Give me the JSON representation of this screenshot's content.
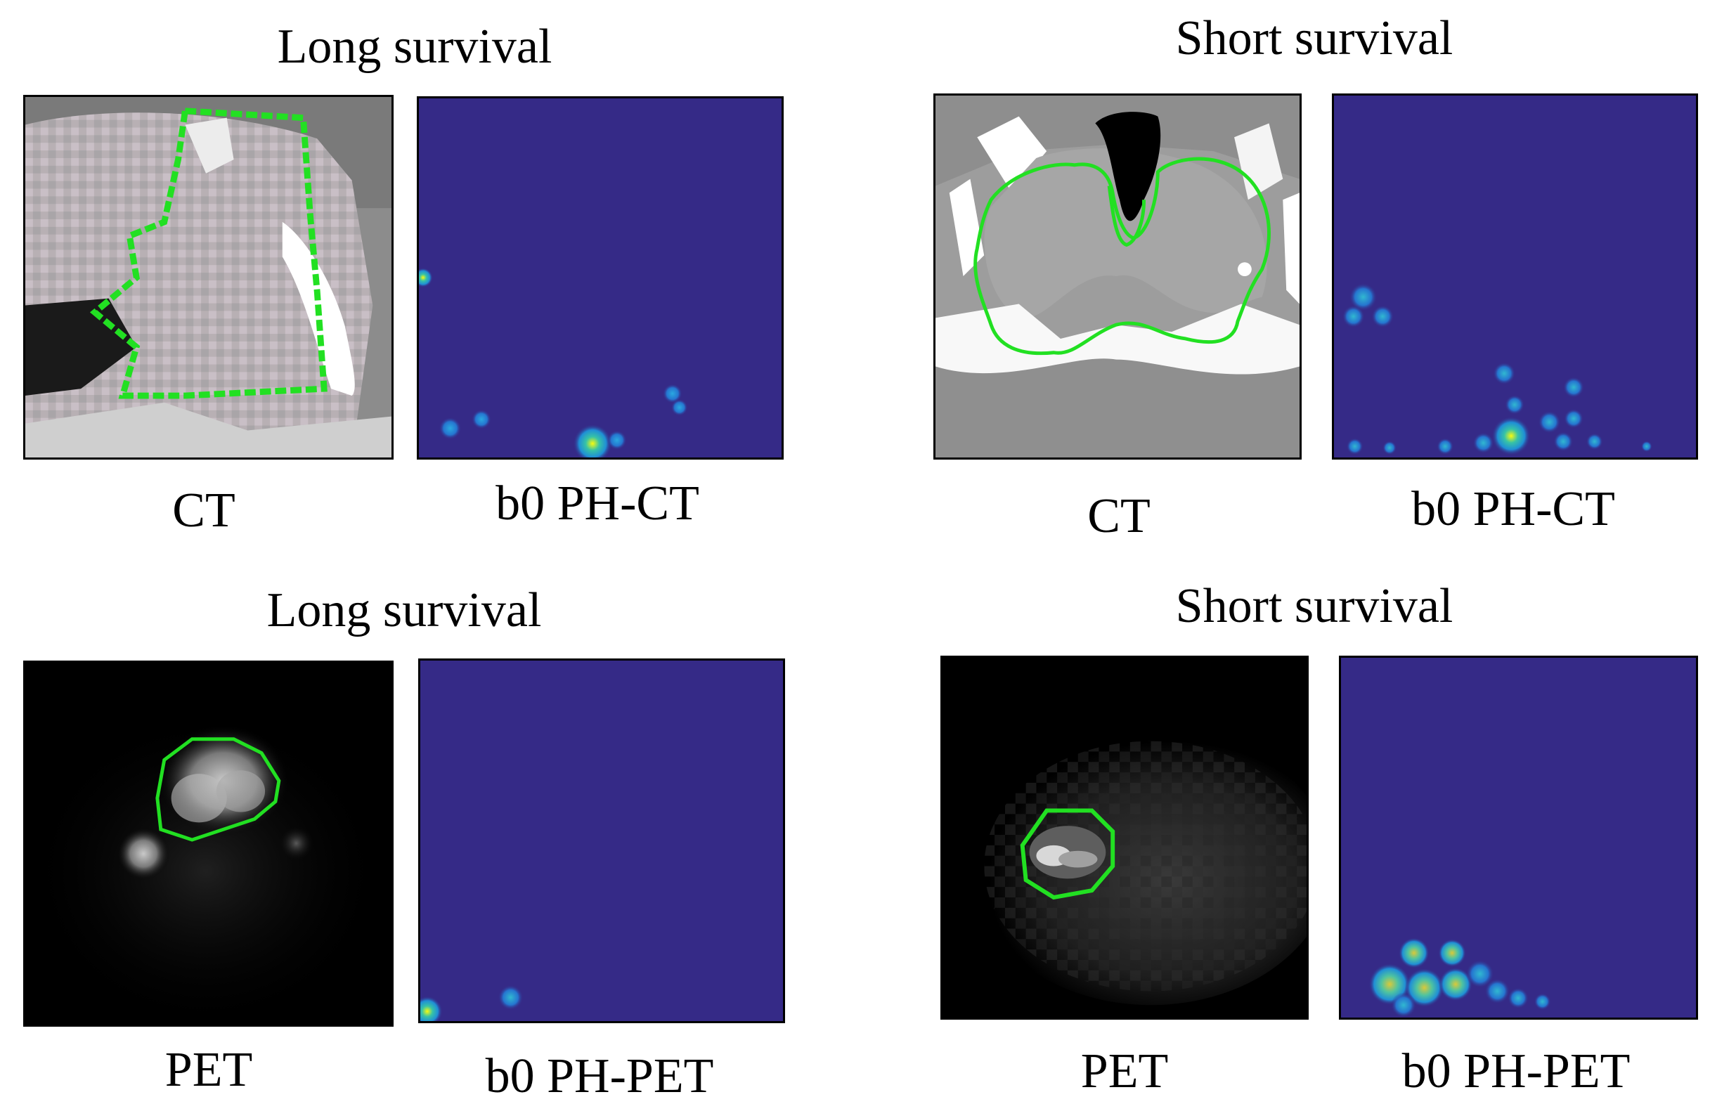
{
  "figure": {
    "quadrants": [
      {
        "title": "Long survival",
        "image_label": "CT",
        "heatmap_label": "b0 PH-CT"
      },
      {
        "title": "Short survival",
        "image_label": "CT",
        "heatmap_label": "b0 PH-CT"
      },
      {
        "title": "Long survival",
        "image_label": "PET",
        "heatmap_label": "b0 PH-PET"
      },
      {
        "title": "Short survival",
        "image_label": "PET",
        "heatmap_label": "b0 PH-PET"
      }
    ],
    "colors": {
      "heatmap_background": "#352a87",
      "contour": "#22e022",
      "hot_spot": "#f9fb0e"
    }
  }
}
